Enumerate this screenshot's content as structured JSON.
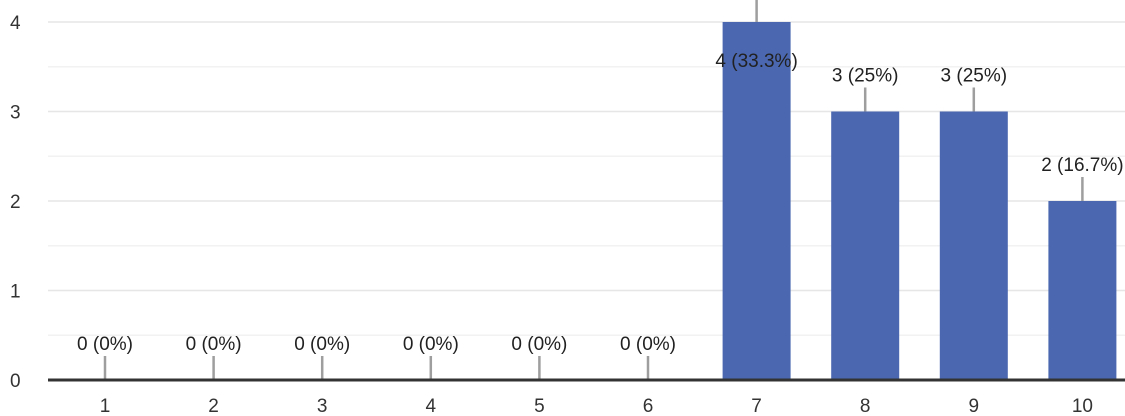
{
  "chart_data": {
    "type": "bar",
    "categories": [
      "1",
      "2",
      "3",
      "4",
      "5",
      "6",
      "7",
      "8",
      "9",
      "10"
    ],
    "values": [
      0,
      0,
      0,
      0,
      0,
      0,
      4,
      3,
      3,
      2
    ],
    "data_labels": [
      "0 (0%)",
      "0 (0%)",
      "0 (0%)",
      "0 (0%)",
      "0 (0%)",
      "0 (0%)",
      "4 (33.3%)",
      "3 (25%)",
      "3 (25%)",
      "2 (16.7%)"
    ],
    "y_ticks": [
      "0",
      "1",
      "2",
      "3",
      "4"
    ],
    "ylim": [
      0,
      4
    ],
    "title": "",
    "xlabel": "",
    "ylabel": "",
    "grid": true,
    "bar_color": "#4a67b0"
  }
}
